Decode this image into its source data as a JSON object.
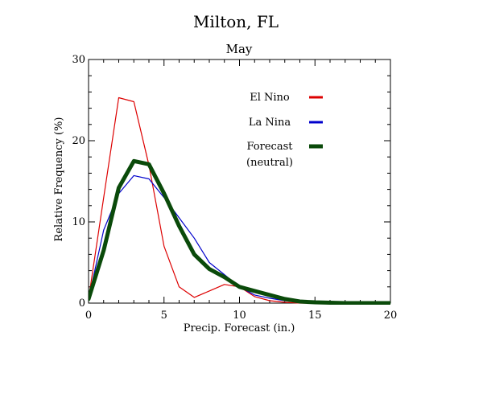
{
  "chart_data": {
    "type": "line",
    "title": "Milton, FL",
    "subtitle": "May",
    "xlabel": "Precip. Forecast (in.)",
    "ylabel": "Relative Frequency (%)",
    "xlim": [
      0,
      20
    ],
    "ylim": [
      0,
      30
    ],
    "xticks": [
      0,
      5,
      10,
      15,
      20
    ],
    "yticks": [
      0,
      10,
      20,
      30
    ],
    "grid": false,
    "legend_position": "top-right",
    "series": [
      {
        "name": "El Nino",
        "color": "#dd0000",
        "width": "thin",
        "x": [
          0,
          1,
          2,
          3,
          4,
          5,
          6,
          7,
          8,
          9,
          10,
          11,
          12,
          13,
          14,
          15,
          16,
          17,
          18,
          19,
          20
        ],
        "y": [
          0.5,
          13,
          25.3,
          24.8,
          17,
          7,
          2,
          0.7,
          1.5,
          2.3,
          2.0,
          0.8,
          0.3,
          0.1,
          0,
          0,
          0,
          0,
          0,
          0,
          0
        ]
      },
      {
        "name": "La Nina",
        "color": "#0000cc",
        "width": "thin",
        "x": [
          0,
          1,
          2,
          3,
          4,
          5,
          6,
          7,
          8,
          9,
          10,
          11,
          12,
          13,
          14,
          15,
          16,
          17,
          18,
          19,
          20
        ],
        "y": [
          0.5,
          9,
          13.5,
          15.7,
          15.3,
          13,
          10.5,
          8,
          5,
          3.5,
          2.0,
          1.0,
          0.6,
          0.3,
          0.1,
          0,
          0,
          0,
          0,
          0,
          0
        ]
      },
      {
        "name": "Forecast",
        "name_line2": "(neutral)",
        "color": "#0a4a0a",
        "width": "thick",
        "x": [
          0,
          1,
          2,
          3,
          4,
          5,
          6,
          7,
          8,
          9,
          10,
          11,
          12,
          13,
          14,
          15,
          16,
          17,
          18,
          19,
          20
        ],
        "y": [
          0.5,
          6.5,
          14.2,
          17.5,
          17.1,
          13.5,
          9.5,
          6,
          4.2,
          3.2,
          2.0,
          1.5,
          1.0,
          0.5,
          0.2,
          0.1,
          0.05,
          0,
          0,
          0,
          0
        ]
      }
    ]
  }
}
